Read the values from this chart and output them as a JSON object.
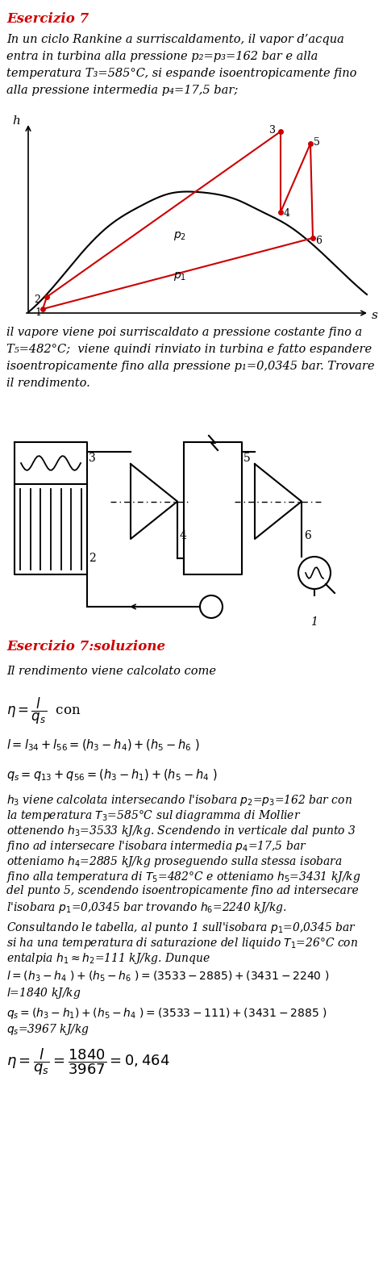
{
  "exercise_title": "Esercizio 7",
  "exercise_title_color": "#cc0000",
  "intro_text_lines": [
    "In un ciclo Rankine a surriscaldamento, il vapor d’acqua",
    "entra in turbina alla pressione p₂=p₃=162 bar e alla",
    "temperatura T₃=585°C, si espande isoentropicamente fino",
    "alla pressione intermedia p₄=17,5 bar;"
  ],
  "continuation_text_lines": [
    "il vapore viene poi surriscaldato a pressione costante fino a",
    "T₅=482°C;  viene quindi rinviato in turbina e fatto espandere",
    "isoentropicamente fino alla pressione p₁=0,0345 bar. Trovare",
    "il rendimento."
  ],
  "solution_title": "Esercizio 7:soluzione",
  "solution_title_color": "#cc0000",
  "background_color": "#ffffff",
  "text_color": "#000000",
  "red_color": "#cc0000"
}
